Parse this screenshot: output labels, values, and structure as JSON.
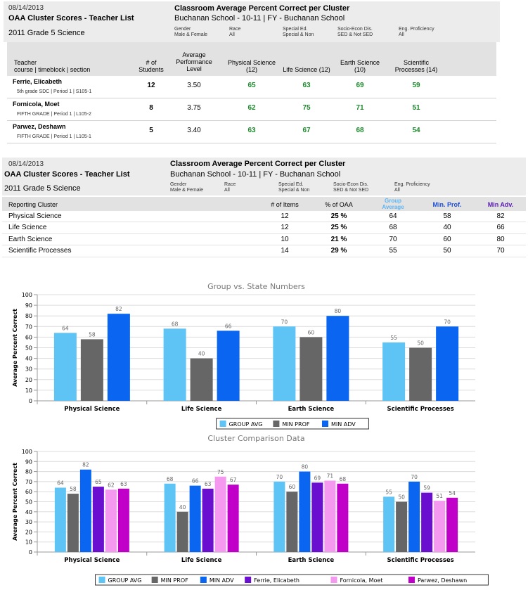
{
  "report1": {
    "date": "08/14/2013",
    "title": "OAA Cluster Scores - Teacher List",
    "subtitle": "2011 Grade 5 Science",
    "heading": "Classroom Average Percent Correct per Cluster",
    "school": "Buchanan School - 10-11 | FY - Buchanan School",
    "filters": [
      {
        "label": "Gender",
        "value": "Male & Female"
      },
      {
        "label": "Race",
        "value": "All"
      },
      {
        "label": "Special Ed.",
        "value": "Special & Non"
      },
      {
        "label": "Socio-Econ Dis.",
        "value": "SED & Not SED"
      },
      {
        "label": "Eng. Proficiency",
        "value": "All"
      }
    ],
    "columns": {
      "teacher": "Teacher",
      "teacher_sub": "course | timeblock | section",
      "students": [
        "# of",
        "Students"
      ],
      "avg_perf": [
        "Average",
        "Performance",
        "Level"
      ],
      "physical": [
        "Physical Science",
        "(12)"
      ],
      "life": "Life Science (12)",
      "earth": [
        "Earth Science",
        "(10)"
      ],
      "scientific": [
        "Scientific",
        "Processes (14)"
      ]
    },
    "rows": [
      {
        "name": "Ferrie, Elicabeth",
        "course": "5th grade SDC | Period 1 | S105-1",
        "students": "12",
        "avg": "3.50",
        "phys": "65",
        "life": "63",
        "earth": "69",
        "sci": "59"
      },
      {
        "name": "Fornicola, Moet",
        "course": "FIFTH GRADE | Period 1 | L105-2",
        "students": "8",
        "avg": "3.75",
        "phys": "62",
        "life": "75",
        "earth": "71",
        "sci": "51"
      },
      {
        "name": "Parwez, Deshawn",
        "course": "FIFTH GRADE | Period 1 | L105-1",
        "students": "5",
        "avg": "3.40",
        "phys": "63",
        "life": "67",
        "earth": "68",
        "sci": "54"
      }
    ]
  },
  "report2": {
    "date": "08/14/2013",
    "title": "OAA Cluster Scores - Teacher List",
    "subtitle": "2011 Grade 5 Science",
    "heading": "Classroom Average Percent Correct per Cluster",
    "school": "Buchanan School - 10-11 | FY - Buchanan School",
    "filters": [
      {
        "label": "Gender",
        "value": "Male & Female"
      },
      {
        "label": "Race",
        "value": "All"
      },
      {
        "label": "Special Ed.",
        "value": "Special & Non"
      },
      {
        "label": "Socio-Econ Dis.",
        "value": "SED & Not SED"
      },
      {
        "label": "Eng. Proficiency",
        "value": "All"
      }
    ],
    "columns": {
      "cluster": "Reporting Cluster",
      "items": "# of Items",
      "pct": "% of OAA",
      "group": [
        "Group",
        "Average"
      ],
      "minprof": "Min. Prof.",
      "minadv": "Min Adv."
    },
    "rows": [
      {
        "cluster": "Physical Science",
        "items": "12",
        "pct": "25 %",
        "group": "64",
        "minprof": "58",
        "minadv": "82"
      },
      {
        "cluster": "Life Science",
        "items": "12",
        "pct": "25 %",
        "group": "68",
        "minprof": "40",
        "minadv": "66"
      },
      {
        "cluster": "Earth Science",
        "items": "10",
        "pct": "21 %",
        "group": "70",
        "minprof": "60",
        "minadv": "80"
      },
      {
        "cluster": "Scientific Processes",
        "items": "14",
        "pct": "29 %",
        "group": "55",
        "minprof": "50",
        "minadv": "70"
      }
    ]
  },
  "colors": {
    "group_avg": "#5ec4f6",
    "min_prof": "#666666",
    "min_adv": "#0a66f0",
    "ferrie": "#6a0fd0",
    "fornicola": "#f598f0",
    "parwez": "#c000c8",
    "value_green": "#1a8a2a"
  },
  "chart_data": [
    {
      "type": "bar",
      "title": "Group vs. State Numbers",
      "ylabel": "Average Percent Correct",
      "xlabel": "",
      "ylim": [
        0,
        100
      ],
      "yticks": [
        0,
        10,
        20,
        30,
        40,
        50,
        60,
        70,
        80,
        90,
        100
      ],
      "categories": [
        "Physical Science",
        "Life Science",
        "Earth Science",
        "Scientific Processes"
      ],
      "series": [
        {
          "name": "GROUP AVG",
          "color": "#5ec4f6",
          "values": [
            64,
            68,
            70,
            55
          ]
        },
        {
          "name": "MIN PROF",
          "color": "#666666",
          "values": [
            58,
            40,
            60,
            50
          ]
        },
        {
          "name": "MIN ADV",
          "color": "#0a66f0",
          "values": [
            82,
            66,
            80,
            70
          ]
        }
      ],
      "legend": "bottom"
    },
    {
      "type": "bar",
      "title": "Cluster Comparison Data",
      "ylabel": "Average Percent Correct",
      "xlabel": "",
      "ylim": [
        0,
        100
      ],
      "yticks": [
        0,
        10,
        20,
        30,
        40,
        50,
        60,
        70,
        80,
        90,
        100
      ],
      "categories": [
        "Physical Science",
        "Life Science",
        "Earth Science",
        "Scientific Processes"
      ],
      "series": [
        {
          "name": "GROUP AVG",
          "color": "#5ec4f6",
          "values": [
            64,
            68,
            70,
            55
          ]
        },
        {
          "name": "MIN PROF",
          "color": "#666666",
          "values": [
            58,
            40,
            60,
            50
          ]
        },
        {
          "name": "MIN ADV",
          "color": "#0a66f0",
          "values": [
            82,
            66,
            80,
            70
          ]
        },
        {
          "name": "Ferrie, Elicabeth",
          "color": "#6a0fd0",
          "values": [
            65,
            63,
            69,
            59
          ]
        },
        {
          "name": "Fornicola, Moet",
          "color": "#f598f0",
          "values": [
            62,
            75,
            71,
            51
          ]
        },
        {
          "name": "Parwez, Deshawn",
          "color": "#c000c8",
          "values": [
            63,
            67,
            68,
            54
          ]
        }
      ],
      "legend": "bottom"
    }
  ]
}
